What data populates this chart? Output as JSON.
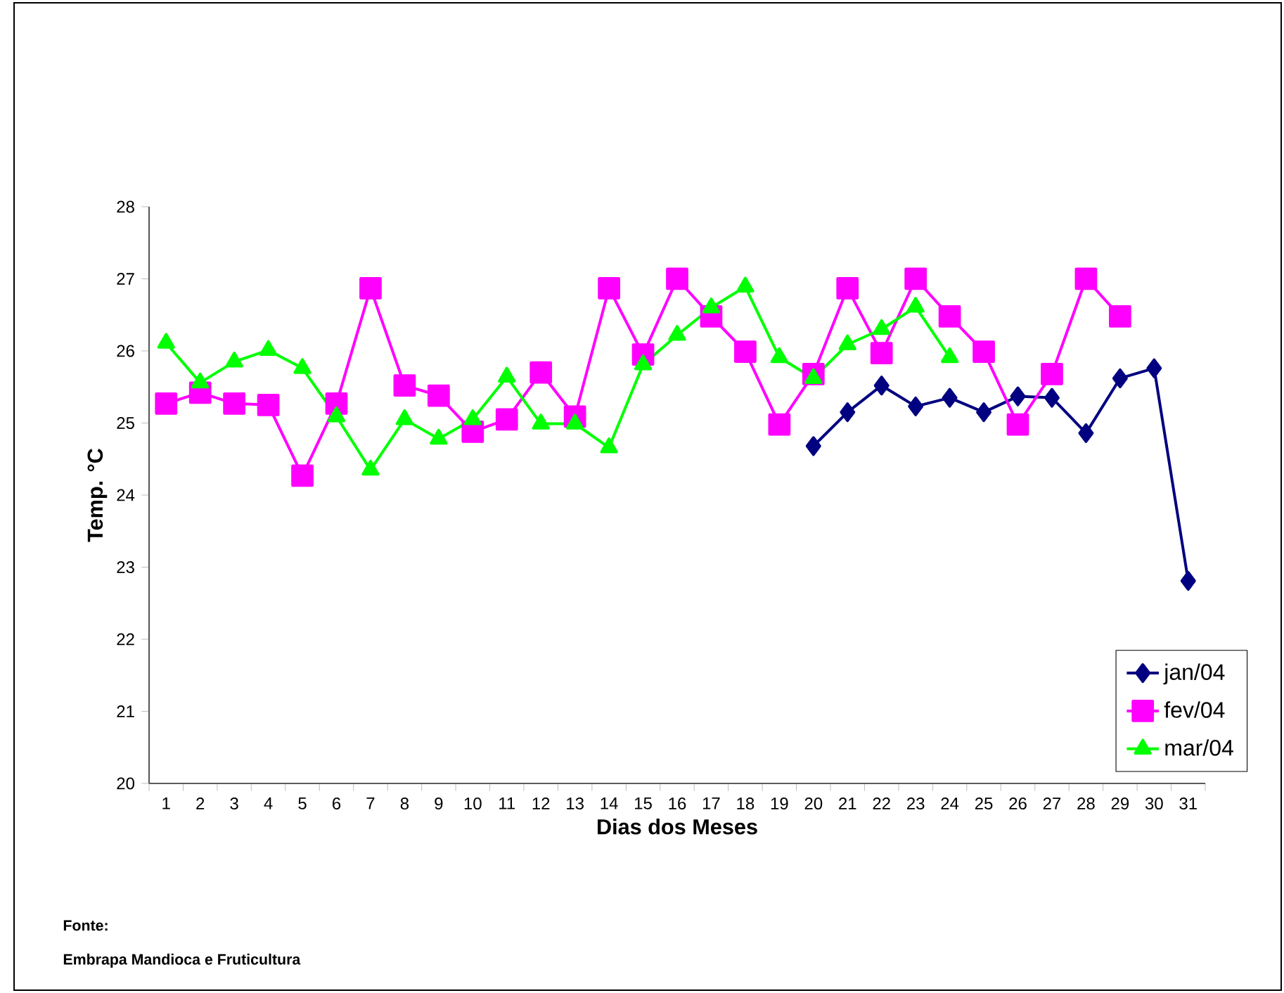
{
  "chart_data": {
    "type": "line",
    "xlabel": "Dias dos Meses",
    "ylabel": "Temp. °C",
    "categories": [
      "1",
      "2",
      "3",
      "4",
      "5",
      "6",
      "7",
      "8",
      "9",
      "10",
      "11",
      "12",
      "13",
      "14",
      "15",
      "16",
      "17",
      "18",
      "19",
      "20",
      "21",
      "22",
      "23",
      "24",
      "25",
      "26",
      "27",
      "28",
      "29",
      "30",
      "31"
    ],
    "ylim": [
      20,
      28
    ],
    "yticks": [
      20,
      21,
      22,
      23,
      24,
      25,
      26,
      27,
      28
    ],
    "legend": "bottom right",
    "grid": false,
    "series": [
      {
        "name": "jan/04",
        "color": "#000080",
        "marker": "diamond",
        "values": [
          null,
          null,
          null,
          null,
          null,
          null,
          null,
          null,
          null,
          null,
          null,
          null,
          null,
          null,
          null,
          null,
          null,
          null,
          null,
          24.68,
          25.15,
          25.52,
          25.23,
          25.35,
          25.15,
          25.37,
          25.35,
          24.86,
          25.62,
          25.76,
          22.81
        ]
      },
      {
        "name": "fev/04",
        "color": "#ff00ff",
        "marker": "square",
        "values": [
          25.27,
          25.42,
          25.27,
          25.25,
          24.27,
          25.27,
          26.87,
          25.52,
          25.38,
          24.88,
          25.05,
          25.7,
          25.09,
          26.87,
          25.95,
          27.0,
          26.48,
          25.99,
          24.98,
          25.68,
          26.87,
          25.97,
          27.0,
          26.48,
          25.99,
          24.98,
          25.68,
          27.0,
          26.48,
          null,
          null
        ]
      },
      {
        "name": "mar/04",
        "color": "#00ff00",
        "marker": "triangle",
        "values": [
          26.11,
          25.56,
          25.85,
          26.01,
          25.76,
          25.09,
          24.35,
          25.05,
          24.78,
          25.05,
          25.64,
          24.99,
          24.99,
          24.66,
          25.81,
          26.22,
          26.6,
          26.89,
          25.91,
          25.62,
          26.09,
          26.3,
          26.61,
          25.91,
          null,
          null,
          null,
          null,
          null,
          null,
          null
        ]
      }
    ],
    "annotations": [
      "Fonte:",
      "Embrapa Mandioca e Fruticultura"
    ]
  }
}
